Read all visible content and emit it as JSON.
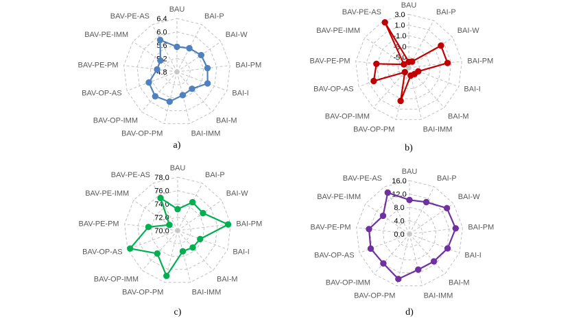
{
  "chart_data": [
    {
      "panel": "a)",
      "type": "radar",
      "color": "#4F81BD",
      "categories": [
        "BAU",
        "BAI-P",
        "BAI-W",
        "BAI-PM",
        "BAI-I",
        "BAI-M",
        "BAI-IMM",
        "BAV-OP-PM",
        "BAV-OP-IMM",
        "BAV-OP-AS",
        "BAV-PE-PM",
        "BAV-PE-IMM",
        "BAV-PE-AS"
      ],
      "ticks": [
        "4.8",
        "5.2",
        "5.6",
        "6.0",
        "6.4"
      ],
      "range": [
        4.8,
        6.4
      ],
      "values": [
        5.55,
        5.6,
        5.68,
        5.72,
        5.78,
        5.48,
        5.52,
        5.72,
        5.78,
        5.7,
        5.4,
        5.4,
        5.88
      ]
    },
    {
      "panel": "b)",
      "type": "radar",
      "color": "#C00000",
      "categories": [
        "BAU",
        "BAI-P",
        "BAI-W",
        "BAI-PM",
        "BAI-I",
        "BAI-M",
        "BAI-IMM",
        "BAV-OP-PM",
        "BAV-OP-IMM",
        "BAV-OP-AS",
        "BAV-PE-PM",
        "BAV-PE-IMM",
        "BAV-PE-AS"
      ],
      "ticks": [
        "-5.0",
        "-3.0",
        "-1.0",
        "1.0",
        "3.0"
      ],
      "range": [
        -7.0,
        3.0
      ],
      "values": [
        -5.9,
        -5.7,
        0.3,
        0.3,
        -5.1,
        -5.4,
        -5.5,
        -0.6,
        -5.9,
        0.0,
        -0.9,
        -5.9,
        2.6
      ]
    },
    {
      "panel": "c)",
      "type": "radar",
      "color": "#00B050",
      "categories": [
        "BAU",
        "BAI-P",
        "BAI-W",
        "BAI-PM",
        "BAI-I",
        "BAI-M",
        "BAI-IMM",
        "BAV-OP-PM",
        "BAV-OP-IMM",
        "BAV-OP-AS",
        "BAV-PE-PM",
        "BAV-PE-IMM",
        "BAV-PE-AS"
      ],
      "ticks": [
        "70.0",
        "72.0",
        "74.0",
        "76.0",
        "78.0"
      ],
      "range": [
        70.0,
        78.0
      ],
      "values": [
        73.2,
        74.8,
        74.6,
        77.6,
        73.6,
        73.4,
        73.2,
        77.0,
        74.6,
        77.6,
        74.4,
        71.5,
        75.5
      ]
    },
    {
      "panel": "d)",
      "type": "radar",
      "color": "#7030A0",
      "categories": [
        "BAU",
        "BAI-P",
        "BAI-W",
        "BAI-PM",
        "BAI-I",
        "BAI-M",
        "BAI-IMM",
        "BAV-OP-PM",
        "BAV-OP-IMM",
        "BAV-OP-AS",
        "BAV-PE-PM",
        "BAV-PE-IMM",
        "BAV-PE-AS"
      ],
      "ticks": [
        "0.0",
        "4.0",
        "8.0",
        "12.0",
        "16.0"
      ],
      "range": [
        0.0,
        16.0
      ],
      "values": [
        10.2,
        10.8,
        13.6,
        13.9,
        12.2,
        11.0,
        11.0,
        13.9,
        11.8,
        12.4,
        12.2,
        9.6,
        14.0
      ]
    }
  ]
}
